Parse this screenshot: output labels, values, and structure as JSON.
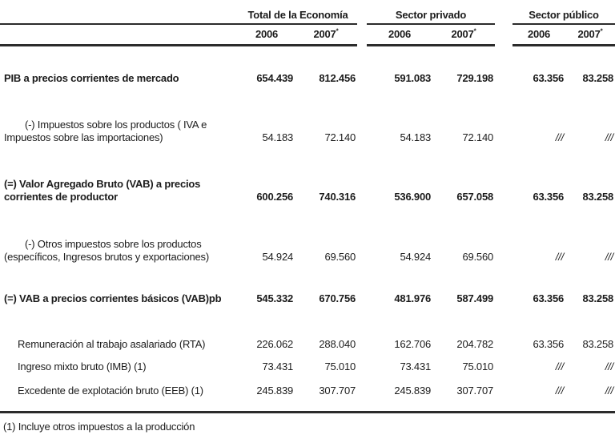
{
  "header": {
    "groups": [
      {
        "title": "Total de la Economía"
      },
      {
        "title": "Sector privado"
      },
      {
        "title": "Sector público"
      }
    ],
    "years": {
      "y2006": "2006",
      "y2007": "2007",
      "sup2007": "*"
    }
  },
  "rows": [
    {
      "label": "PIB a precios corrientes de mercado",
      "values": [
        "654.439",
        "812.456",
        "591.083",
        "729.198",
        "63.356",
        "83.258"
      ]
    },
    {
      "label": "(-) Impuestos sobre los productos ( IVA e Impuestos sobre las importaciones)",
      "values": [
        "54.183",
        "72.140",
        "54.183",
        "72.140",
        "///",
        "///"
      ]
    },
    {
      "label": "(=) Valor Agregado Bruto (VAB) a precios corrientes de productor",
      "values": [
        "600.256",
        "740.316",
        "536.900",
        "657.058",
        "63.356",
        "83.258"
      ]
    },
    {
      "label": "(-) Otros impuestos sobre los productos (específicos, Ingresos brutos y exportaciones)",
      "values": [
        "54.924",
        "69.560",
        "54.924",
        "69.560",
        "///",
        "///"
      ]
    },
    {
      "label": "(=) VAB a precios corrientes básicos (VAB)pb",
      "values": [
        "545.332",
        "670.756",
        "481.976",
        "587.499",
        "63.356",
        "83.258"
      ]
    },
    {
      "label": "Remuneración al trabajo asalariado (RTA)",
      "values": [
        "226.062",
        "288.040",
        "162.706",
        "204.782",
        "63.356",
        "83.258"
      ]
    },
    {
      "label": "Ingreso mixto bruto (IMB) (1)",
      "values": [
        "73.431",
        "75.010",
        "73.431",
        "75.010",
        "///",
        "///"
      ]
    },
    {
      "label": "Excedente de explotación bruto (EEB) (1)",
      "values": [
        "245.839",
        "307.707",
        "245.839",
        "307.707",
        "///",
        "///"
      ]
    }
  ],
  "footnote": "(1) Incluye otros impuestos a la producción"
}
